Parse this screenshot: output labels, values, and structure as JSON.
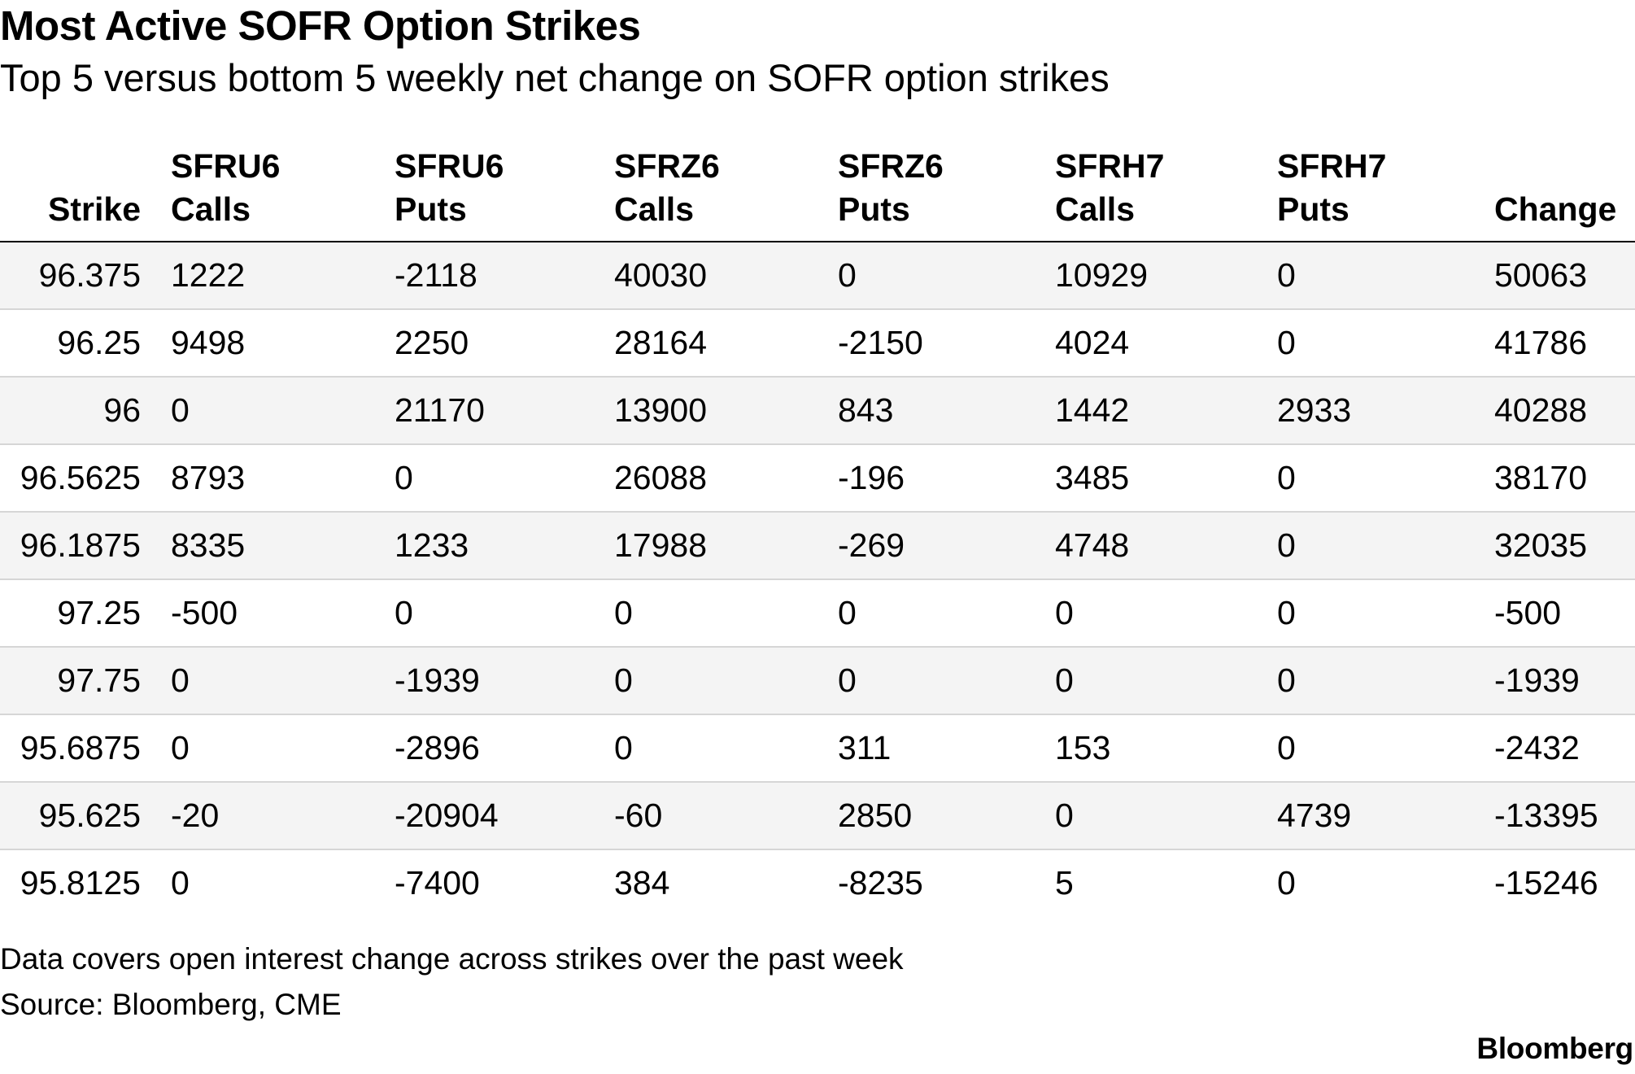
{
  "chart_data": {
    "type": "table",
    "title": "Most Active SOFR Option Strikes",
    "subtitle": "Top 5 versus bottom 5 weekly net change on SOFR option strikes",
    "columns": [
      {
        "line1": "",
        "line2": "Strike"
      },
      {
        "line1": "SFRU6",
        "line2": "Calls"
      },
      {
        "line1": "SFRU6",
        "line2": "Puts"
      },
      {
        "line1": "SFRZ6",
        "line2": "Calls"
      },
      {
        "line1": "SFRZ6",
        "line2": "Puts"
      },
      {
        "line1": "SFRH7",
        "line2": "Calls"
      },
      {
        "line1": "SFRH7",
        "line2": "Puts"
      },
      {
        "line1": "",
        "line2": "Change"
      }
    ],
    "rows": [
      [
        "96.375",
        "1222",
        "-2118",
        "40030",
        "0",
        "10929",
        "0",
        "50063"
      ],
      [
        "96.25",
        "9498",
        "2250",
        "28164",
        "-2150",
        "4024",
        "0",
        "41786"
      ],
      [
        "96",
        "0",
        "21170",
        "13900",
        "843",
        "1442",
        "2933",
        "40288"
      ],
      [
        "96.5625",
        "8793",
        "0",
        "26088",
        "-196",
        "3485",
        "0",
        "38170"
      ],
      [
        "96.1875",
        "8335",
        "1233",
        "17988",
        "-269",
        "4748",
        "0",
        "32035"
      ],
      [
        "97.25",
        "-500",
        "0",
        "0",
        "0",
        "0",
        "0",
        "-500"
      ],
      [
        "97.75",
        "0",
        "-1939",
        "0",
        "0",
        "0",
        "0",
        "-1939"
      ],
      [
        "95.6875",
        "0",
        "-2896",
        "0",
        "311",
        "153",
        "0",
        "-2432"
      ],
      [
        "95.625",
        "-20",
        "-20904",
        "-60",
        "2850",
        "0",
        "4739",
        "-13395"
      ],
      [
        "95.8125",
        "0",
        "-7400",
        "384",
        "-8235",
        "5",
        "0",
        "-15246"
      ]
    ],
    "note": "Data covers open interest change across strikes over the past week",
    "source": "Source: Bloomberg, CME"
  },
  "branding": {
    "logo": "Bloomberg"
  },
  "colors": {
    "shade_row": "#f4f4f4",
    "divider": "#d6d6d6",
    "header_rule": "#000000"
  }
}
